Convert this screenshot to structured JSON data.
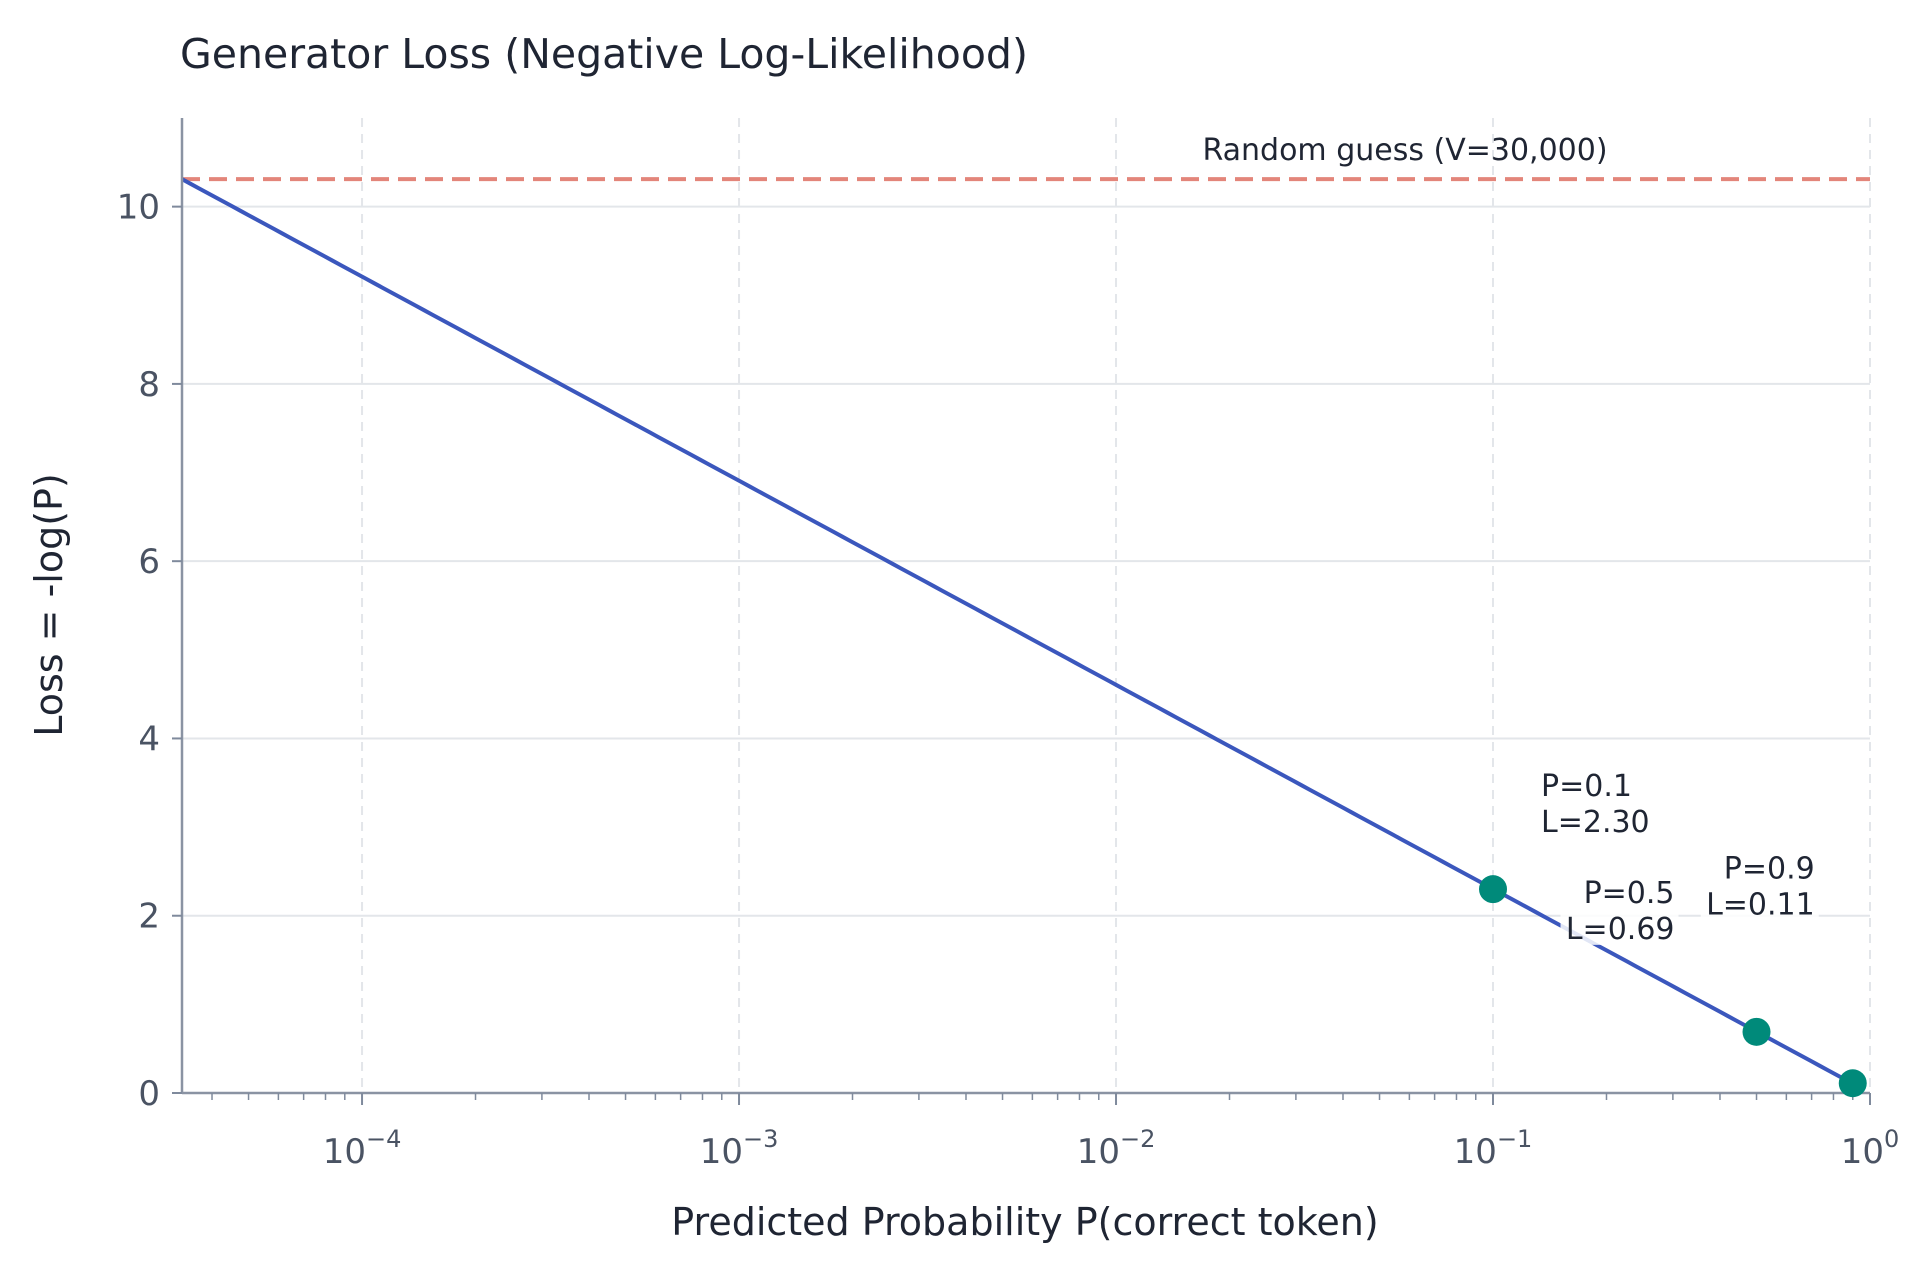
{
  "chart_data": {
    "type": "line",
    "title": "Generator Loss (Negative Log-Likelihood)",
    "xlabel": "Predicted Probability P(correct token)",
    "ylabel": "Loss = -log(P)",
    "xscale": "log",
    "xlim": [
      3.33e-05,
      1.0
    ],
    "ylim": [
      0,
      11
    ],
    "grid": true,
    "x_ticks": [
      {
        "base": "10",
        "exp": "−4",
        "value": 0.0001
      },
      {
        "base": "10",
        "exp": "−3",
        "value": 0.001
      },
      {
        "base": "10",
        "exp": "−2",
        "value": 0.01
      },
      {
        "base": "10",
        "exp": "−1",
        "value": 0.1
      },
      {
        "base": "10",
        "exp": "0",
        "value": 1
      }
    ],
    "y_ticks": [
      {
        "label": "0",
        "value": 0
      },
      {
        "label": "2",
        "value": 2
      },
      {
        "label": "4",
        "value": 4
      },
      {
        "label": "6",
        "value": 6
      },
      {
        "label": "8",
        "value": 8
      },
      {
        "label": "10",
        "value": 10
      }
    ],
    "series": [
      {
        "color": "#3b57bd",
        "x_range": [
          3.33e-05,
          0.9
        ],
        "function": "-ln(x)"
      }
    ],
    "reference_line": {
      "y": 10.31,
      "label": "Random guess (V=30,000)",
      "color": "#e3857a",
      "style": "dashed"
    },
    "points": [
      {
        "x": 0.1,
        "y": 2.3,
        "line1": "P=0.1",
        "line2": "L=2.30"
      },
      {
        "x": 0.5,
        "y": 0.69,
        "line1": "P=0.5",
        "line2": "L=0.69"
      },
      {
        "x": 0.9,
        "y": 0.11,
        "line1": "P=0.9",
        "line2": "L=0.11"
      }
    ],
    "point_color": "#008a7a"
  }
}
